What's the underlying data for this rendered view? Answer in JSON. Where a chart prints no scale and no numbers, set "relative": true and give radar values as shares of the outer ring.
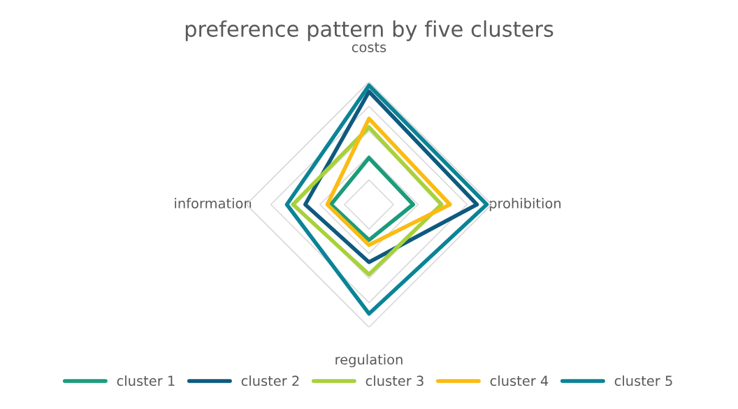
{
  "chart_data": {
    "type": "radar",
    "title": "preference pattern by five clusters",
    "relative": true,
    "legend": "bottom",
    "categories": [
      "costs",
      "prohibition",
      "regulation",
      "information"
    ],
    "series": [
      {
        "name": "cluster 1",
        "color": "#1a9c7b",
        "values": [
          0.38,
          0.36,
          0.29,
          0.31
        ]
      },
      {
        "name": "cluster 2",
        "color": "#0e5a7e",
        "values": [
          0.92,
          0.88,
          0.47,
          0.52
        ]
      },
      {
        "name": "cluster 3",
        "color": "#a8d13a",
        "values": [
          0.63,
          0.59,
          0.57,
          0.62
        ]
      },
      {
        "name": "cluster 4",
        "color": "#fbbb12",
        "values": [
          0.7,
          0.66,
          0.33,
          0.34
        ]
      },
      {
        "name": "cluster 5",
        "color": "#0a8496",
        "values": [
          0.97,
          0.96,
          0.89,
          0.67
        ]
      }
    ]
  }
}
